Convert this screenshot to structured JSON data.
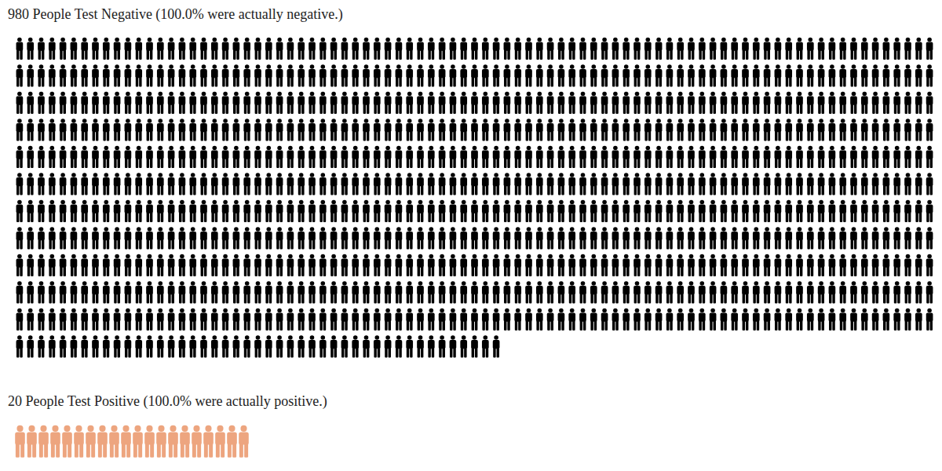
{
  "chart_data": [
    {
      "type": "icon_array",
      "title": "980 People Test Negative (100.0% were actually negative.)",
      "values": [
        980
      ],
      "color": "#000000",
      "tick_labels": false
    },
    {
      "type": "icon_array",
      "title": "20 People Test Positive (100.0% were actually positive.)",
      "values": [
        20
      ],
      "color": "#eda57f",
      "tick_labels": false
    }
  ]
}
